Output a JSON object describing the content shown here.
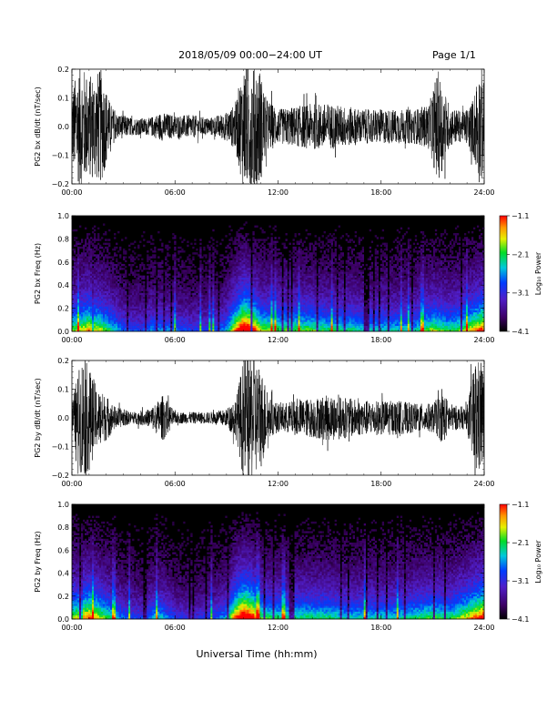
{
  "header": {
    "title": "2018/05/09  00:00−24:00 UT",
    "page": "Page 1/1"
  },
  "xaxis": {
    "title": "Universal Time (hh:mm)",
    "ticks": [
      "00:00",
      "06:00",
      "12:00",
      "18:00",
      "24:00"
    ],
    "range_hours": [
      0,
      24
    ]
  },
  "colorbar": {
    "label": "Log₁₀ Power",
    "ticks": [
      "−1.1",
      "−2.1",
      "−3.1",
      "−4.1"
    ],
    "range": [
      -4.1,
      -1.1
    ]
  },
  "chart_data": [
    {
      "type": "line",
      "ylabel": "PG2 bx dB/dt (nT/sec)",
      "ylim": [
        -0.2,
        0.2
      ],
      "yticks": [
        "0.2",
        "0.1",
        "0.0",
        "−0.1",
        "−0.2"
      ],
      "xlim": [
        0,
        24
      ],
      "envelope": {
        "hour": [
          0,
          0.5,
          1.0,
          1.7,
          2.2,
          2.5,
          3.5,
          4.5,
          5.2,
          6.0,
          7.0,
          8.0,
          9.0,
          9.5,
          10.0,
          10.5,
          10.9,
          11.3,
          12.0,
          13.0,
          14.0,
          15.0,
          16.0,
          17.0,
          18.0,
          19.0,
          20.0,
          20.8,
          21.3,
          22.0,
          22.8,
          23.3,
          23.8,
          24.0
        ],
        "amplitude": [
          0.14,
          0.22,
          0.18,
          0.2,
          0.09,
          0.05,
          0.03,
          0.03,
          0.05,
          0.04,
          0.04,
          0.03,
          0.05,
          0.08,
          0.22,
          0.22,
          0.22,
          0.1,
          0.06,
          0.07,
          0.08,
          0.08,
          0.07,
          0.06,
          0.06,
          0.06,
          0.06,
          0.08,
          0.2,
          0.07,
          0.05,
          0.09,
          0.22,
          0.15
        ]
      }
    },
    {
      "type": "heatmap",
      "ylabel": "PG2 bx Freq (Hz)",
      "ylim": [
        0.0,
        1.0
      ],
      "yticks": [
        "1.0",
        "0.8",
        "0.6",
        "0.4",
        "0.2",
        "0.0"
      ],
      "xlim": [
        0,
        24
      ],
      "colorbar_range": [
        -4.1,
        -1.1
      ],
      "activity": {
        "hour": [
          0,
          1,
          2,
          3,
          4,
          5,
          6,
          7,
          8,
          9,
          9.5,
          10,
          10.5,
          11,
          12,
          13,
          14,
          15,
          16,
          17,
          18,
          19,
          20,
          21,
          22,
          23,
          24
        ],
        "level": [
          0.55,
          0.7,
          0.55,
          0.35,
          0.3,
          0.4,
          0.35,
          0.3,
          0.3,
          0.4,
          0.7,
          0.95,
          0.85,
          0.6,
          0.55,
          0.55,
          0.55,
          0.5,
          0.5,
          0.45,
          0.45,
          0.45,
          0.45,
          0.6,
          0.5,
          0.6,
          0.8
        ]
      }
    },
    {
      "type": "line",
      "ylabel": "PG2 by dB/dt (nT/sec)",
      "ylim": [
        -0.2,
        0.2
      ],
      "yticks": [
        "0.2",
        "0.1",
        "0.0",
        "−0.1",
        "−0.2"
      ],
      "xlim": [
        0,
        24
      ],
      "envelope": {
        "hour": [
          0,
          0.3,
          0.6,
          1.0,
          1.5,
          2.0,
          2.5,
          3.5,
          4.5,
          5.0,
          5.3,
          6.0,
          7.0,
          8.0,
          9.0,
          9.6,
          10.0,
          10.5,
          11.0,
          11.5,
          12.0,
          13.0,
          14.0,
          15.0,
          16.0,
          17.0,
          18.0,
          19.0,
          20.0,
          21.0,
          21.6,
          22.0,
          22.5,
          23.0,
          23.5,
          24.0
        ],
        "amplitude": [
          0.05,
          0.14,
          0.22,
          0.18,
          0.1,
          0.08,
          0.04,
          0.02,
          0.03,
          0.06,
          0.08,
          0.02,
          0.02,
          0.02,
          0.03,
          0.08,
          0.22,
          0.22,
          0.18,
          0.07,
          0.05,
          0.06,
          0.07,
          0.08,
          0.07,
          0.06,
          0.06,
          0.06,
          0.05,
          0.05,
          0.09,
          0.05,
          0.04,
          0.04,
          0.22,
          0.18
        ]
      }
    },
    {
      "type": "heatmap",
      "ylabel": "PG2 by Freq (Hz)",
      "ylim": [
        0.0,
        1.0
      ],
      "yticks": [
        "1.0",
        "0.8",
        "0.6",
        "0.4",
        "0.2",
        "0.0"
      ],
      "xlim": [
        0,
        24
      ],
      "colorbar_range": [
        -4.1,
        -1.1
      ],
      "activity": {
        "hour": [
          0,
          1,
          2,
          3,
          4,
          5,
          6,
          7,
          8,
          9,
          9.5,
          10,
          10.5,
          11,
          12,
          13,
          14,
          15,
          16,
          17,
          18,
          19,
          20,
          21,
          22,
          23,
          24
        ],
        "level": [
          0.6,
          0.75,
          0.55,
          0.35,
          0.3,
          0.45,
          0.3,
          0.25,
          0.3,
          0.4,
          0.75,
          0.95,
          0.85,
          0.55,
          0.5,
          0.5,
          0.5,
          0.5,
          0.45,
          0.45,
          0.45,
          0.45,
          0.5,
          0.55,
          0.5,
          0.65,
          0.85
        ]
      }
    }
  ]
}
